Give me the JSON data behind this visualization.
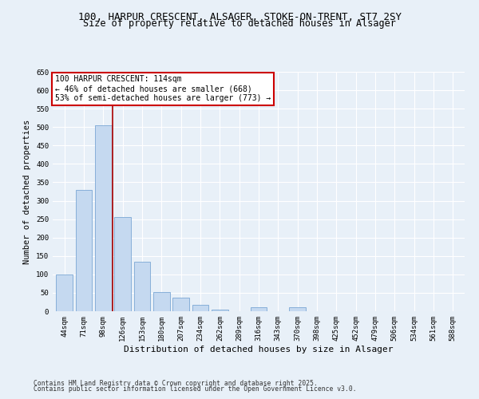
{
  "title1": "100, HARPUR CRESCENT, ALSAGER, STOKE-ON-TRENT, ST7 2SY",
  "title2": "Size of property relative to detached houses in Alsager",
  "xlabel": "Distribution of detached houses by size in Alsager",
  "ylabel": "Number of detached properties",
  "categories": [
    "44sqm",
    "71sqm",
    "98sqm",
    "126sqm",
    "153sqm",
    "180sqm",
    "207sqm",
    "234sqm",
    "262sqm",
    "289sqm",
    "316sqm",
    "343sqm",
    "370sqm",
    "398sqm",
    "425sqm",
    "452sqm",
    "479sqm",
    "506sqm",
    "534sqm",
    "561sqm",
    "588sqm"
  ],
  "values": [
    100,
    330,
    505,
    255,
    135,
    53,
    36,
    18,
    4,
    1,
    10,
    1,
    10,
    1,
    1,
    1,
    1,
    1,
    1,
    1,
    1
  ],
  "bar_color": "#c5d9f0",
  "bar_edge_color": "#7ba7d4",
  "vline_x": 2.5,
  "vline_color": "#aa0000",
  "annotation_text": "100 HARPUR CRESCENT: 114sqm\n← 46% of detached houses are smaller (668)\n53% of semi-detached houses are larger (773) →",
  "annotation_box_color": "#ffffff",
  "annotation_box_edge": "#cc0000",
  "ylim": [
    0,
    650
  ],
  "yticks": [
    0,
    50,
    100,
    150,
    200,
    250,
    300,
    350,
    400,
    450,
    500,
    550,
    600,
    650
  ],
  "bg_color": "#e8f0f8",
  "plot_bg_color": "#e8f0f8",
  "footer1": "Contains HM Land Registry data © Crown copyright and database right 2025.",
  "footer2": "Contains public sector information licensed under the Open Government Licence v3.0.",
  "title_fontsize": 9,
  "subtitle_fontsize": 8.5,
  "tick_fontsize": 6.5,
  "xlabel_fontsize": 8,
  "ylabel_fontsize": 7.5,
  "annot_fontsize": 7,
  "footer_fontsize": 5.8
}
